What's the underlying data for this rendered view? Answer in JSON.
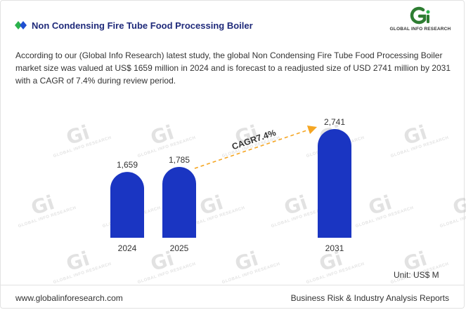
{
  "header": {
    "title": "Non Condensing Fire Tube Food Processing Boiler",
    "logo_text": "GLOBAL INFO RESEARCH"
  },
  "description": "According to our (Global Info Research) latest study, the global Non Condensing Fire Tube Food Processing Boiler market size was valued at US$ 1659 million in 2024 and is forecast to a readjusted size of USD 2741 million by 2031 with a CAGR of 7.4% during review period.",
  "watermark_text": "GLOBAL INFO RESEARCH",
  "colors": {
    "bar": "#1a35c2",
    "title": "#1f2a7a",
    "arrow": "#f5a623",
    "icon_green": "#2bb24c",
    "icon_blue": "#1f4fd1"
  },
  "chart_data": {
    "type": "bar",
    "categories": [
      "2024",
      "2025",
      "2031"
    ],
    "values": [
      1659,
      1785,
      2741
    ],
    "value_labels": [
      "1,659",
      "1,785",
      "2,741"
    ],
    "annotation": "CAGR7.4%",
    "annotation_from": "2025",
    "annotation_to": "2031",
    "unit": "Unit: US$ M",
    "ylim": [
      0,
      2741
    ],
    "grid": false
  },
  "footer": {
    "website": "www.globalinforesearch.com",
    "tagline": "Business Risk & Industry Analysis Reports"
  }
}
